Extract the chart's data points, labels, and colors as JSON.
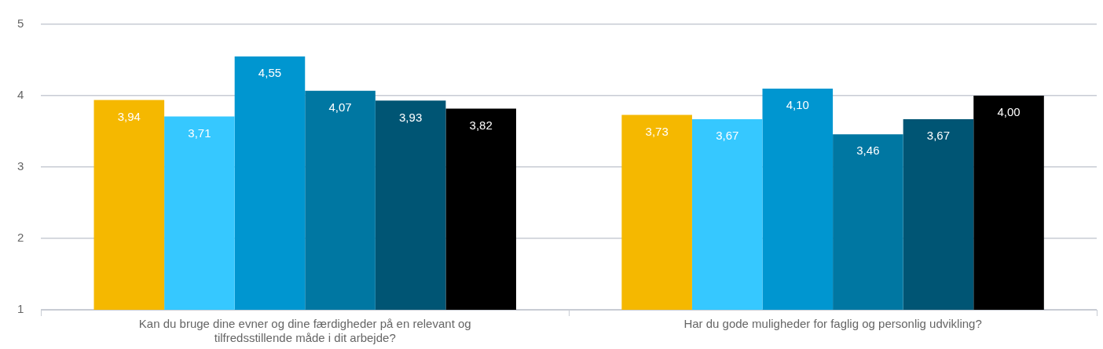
{
  "chart_data": {
    "type": "bar",
    "categories": [
      "Kan du bruge dine evner og dine færdigheder på en relevant og tilfredsstillende måde i dit arbejde?",
      "Har du gode muligheder for faglig og personlig udvikling?"
    ],
    "series": [
      {
        "color": "#f5b800",
        "values": [
          3.94,
          3.73
        ],
        "value_labels": [
          "3,94",
          "3,73"
        ]
      },
      {
        "color": "#36c8ff",
        "values": [
          3.71,
          3.67
        ],
        "value_labels": [
          "3,71",
          "3,67"
        ]
      },
      {
        "color": "#0096d0",
        "values": [
          4.55,
          4.1
        ],
        "value_labels": [
          "4,55",
          "4,10"
        ]
      },
      {
        "color": "#0077a2",
        "values": [
          4.07,
          3.46
        ],
        "value_labels": [
          "4,07",
          "3,46"
        ]
      },
      {
        "color": "#005574",
        "values": [
          3.93,
          3.67
        ],
        "value_labels": [
          "3,93",
          "3,67"
        ]
      },
      {
        "color": "#000000",
        "values": [
          3.82,
          4.0
        ],
        "value_labels": [
          "3,82",
          "4,00"
        ]
      }
    ],
    "ylim": [
      1,
      5
    ],
    "yticks": [
      1,
      2,
      3,
      4,
      5
    ],
    "grid": "y"
  }
}
